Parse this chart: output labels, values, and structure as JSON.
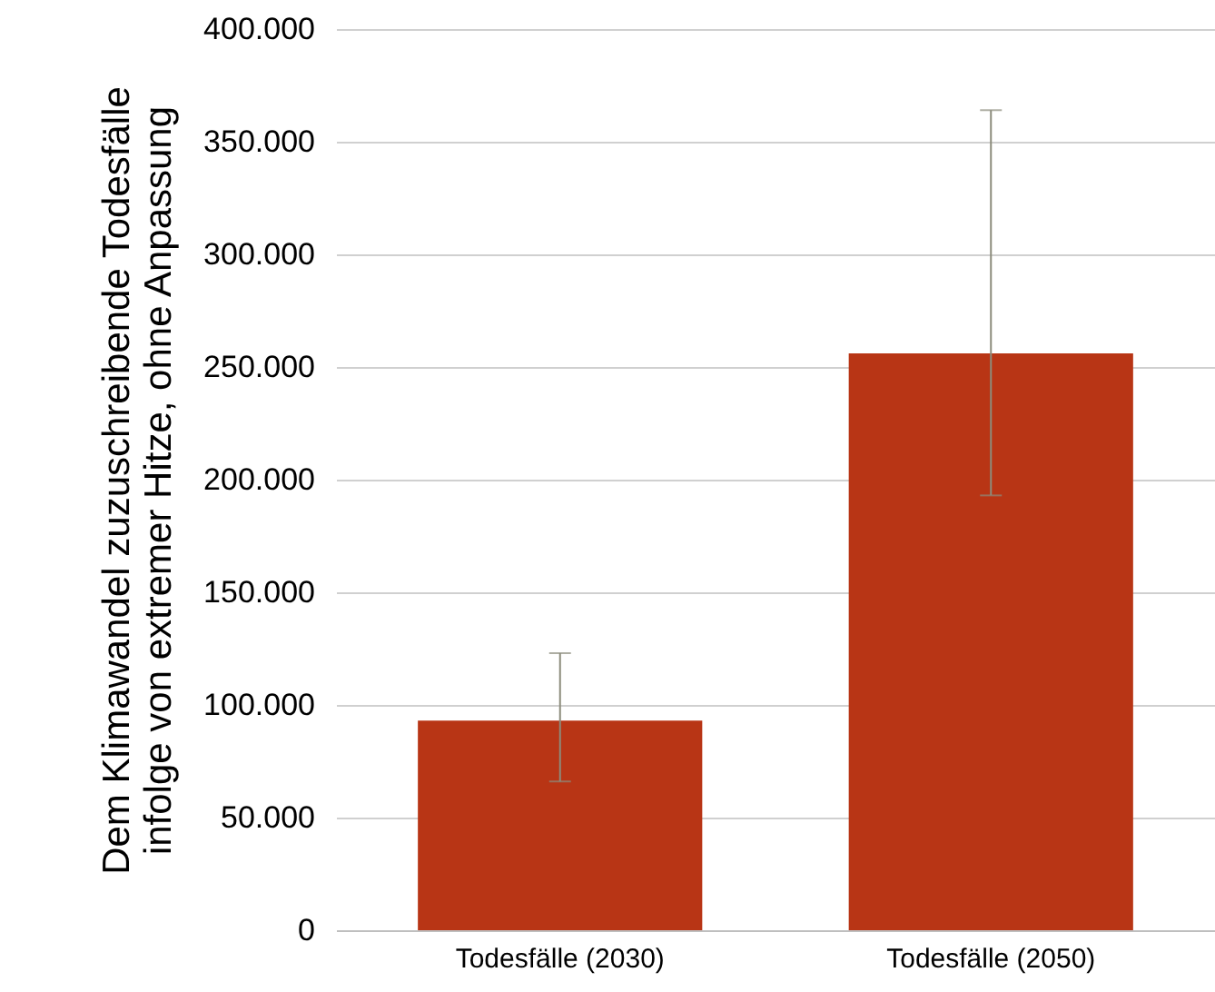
{
  "chart_data": {
    "type": "bar",
    "ylabel": "Dem Klimawandel zuzuschreibende Todesfälle infolge von extremer Hitze, ohne Anpassung",
    "categories": [
      "Todesfälle (2030)",
      "Todesfälle (2050)"
    ],
    "values": [
      93000,
      256000
    ],
    "color": "#b83515",
    "errors": [
      [
        66000,
        123000
      ],
      [
        193000,
        364000
      ]
    ],
    "ylim": [
      0,
      400000
    ],
    "yticks": [
      0,
      {
        "value": 50000,
        "label": "50.000"
      },
      {
        "value": 100000,
        "label": "100.000"
      },
      {
        "value": 150000,
        "label": "150.000"
      },
      {
        "value": 200000,
        "label": "200.000"
      },
      {
        "value": 250000,
        "label": "250.000"
      },
      {
        "value": 300000,
        "label": "300.000"
      },
      {
        "value": 350000,
        "label": "350.000"
      },
      {
        "value": 400000,
        "label": "400.000"
      }
    ],
    "grid": "y"
  }
}
